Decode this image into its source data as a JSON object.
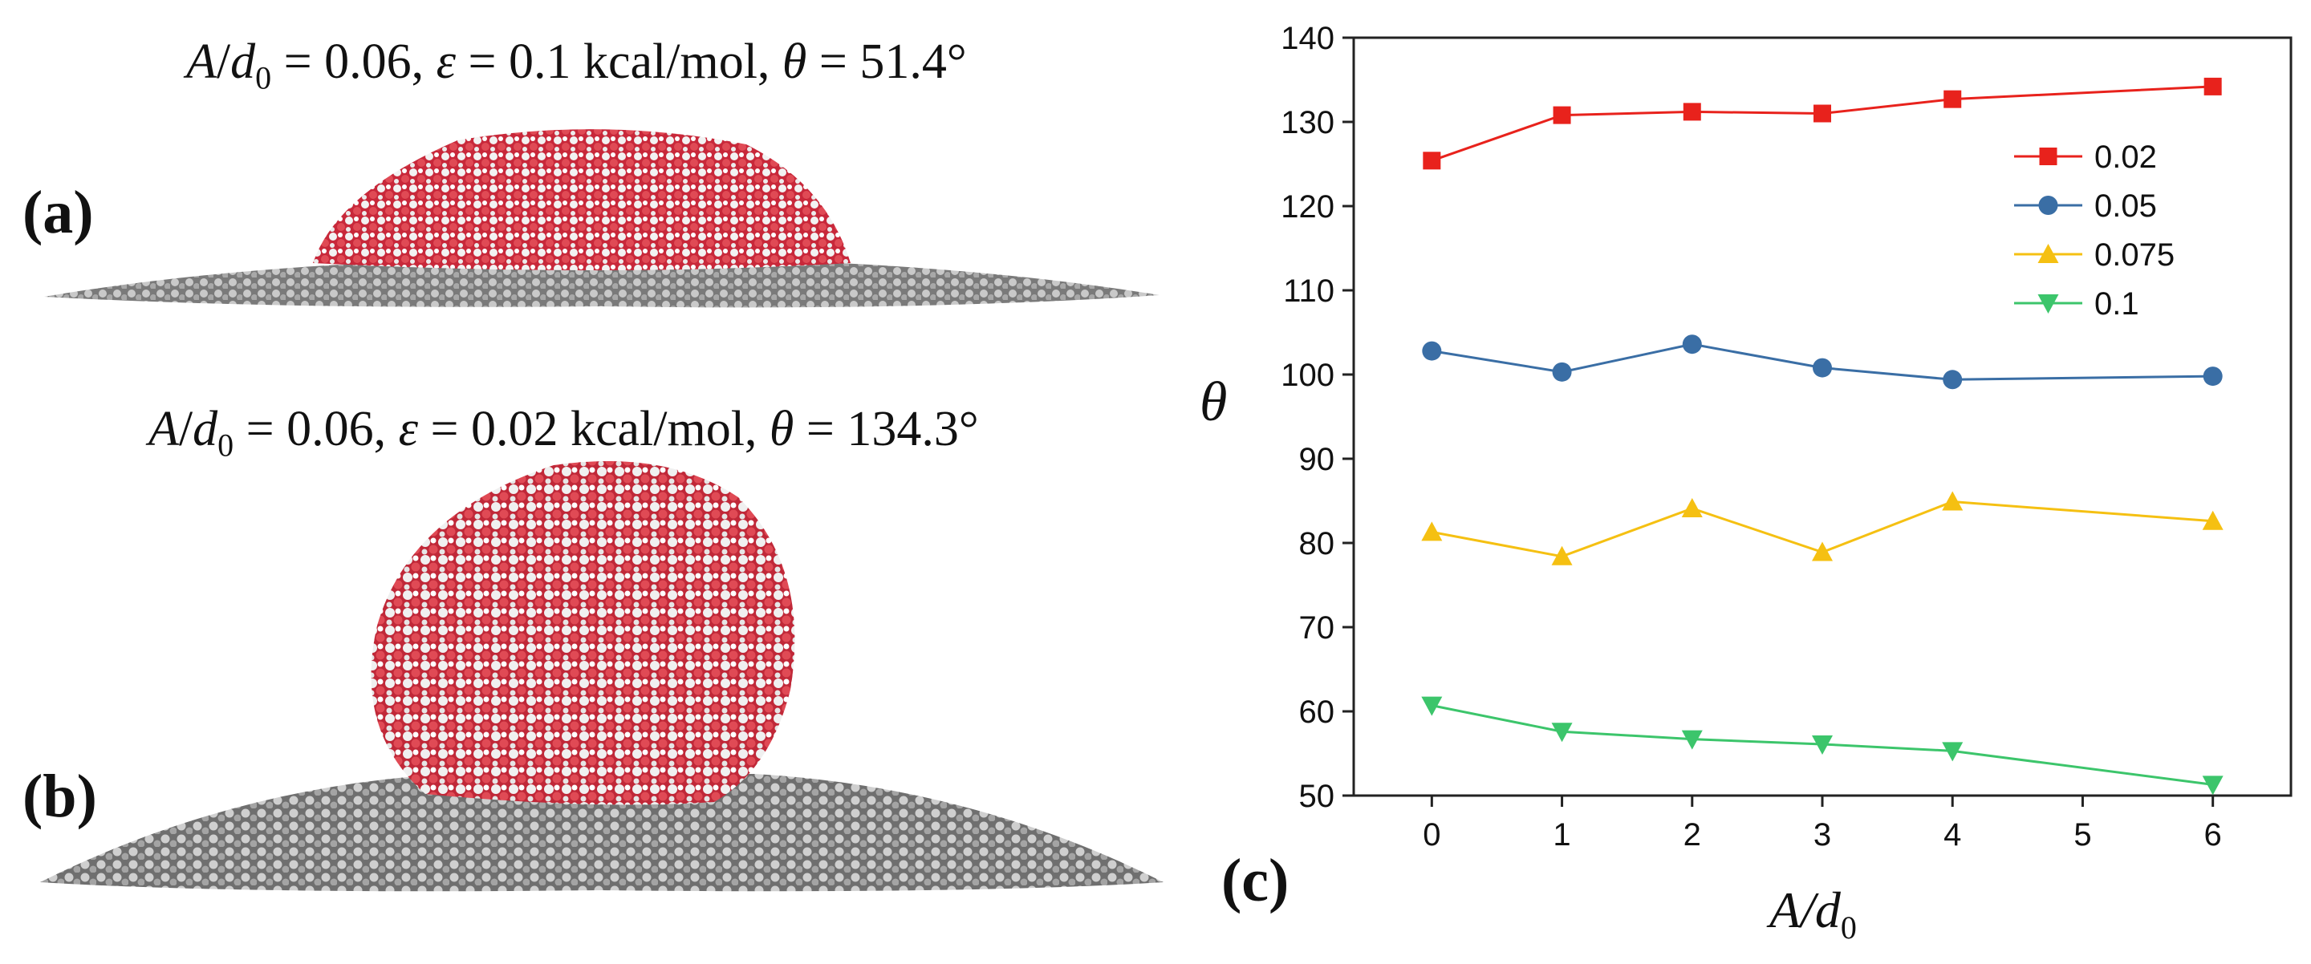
{
  "panels": {
    "a": {
      "label": "(a)",
      "caption": {
        "var1": "A",
        "var1_sub": "d",
        "sub_idx": "0",
        "ratio": " = 0.06, ",
        "eps_sym": "ε",
        "eps_val": " = 0.1 kcal/mol, ",
        "theta_sym": "θ",
        "theta_val": " = 51.4°"
      }
    },
    "b": {
      "label": "(b)",
      "caption": {
        "var1": "A",
        "var1_sub": "d",
        "sub_idx": "0",
        "ratio": " = 0.06, ",
        "eps_sym": "ε",
        "eps_val": " = 0.02 kcal/mol, ",
        "theta_sym": "θ",
        "theta_val": " = 134.3°"
      }
    },
    "c": {
      "label": "(c)"
    }
  },
  "colors": {
    "s002": "#e8221c",
    "s005": "#3a6ea5",
    "s0075": "#f5c012",
    "s01": "#3cc56b",
    "substrate": "#8a8a8a",
    "oxygen": "#d9323a",
    "hydrogen": "#f1f1f1"
  },
  "chart_data": {
    "type": "line",
    "title": "",
    "xlabel": "A/d0",
    "xlabel_main": "A/d",
    "xlabel_sub": "0",
    "ylabel": "θ",
    "xlim": [
      -0.6,
      6.6
    ],
    "ylim": [
      50,
      140
    ],
    "xticks": [
      0,
      1,
      2,
      3,
      4,
      5,
      6
    ],
    "yticks": [
      50,
      60,
      70,
      80,
      90,
      100,
      110,
      120,
      130,
      140
    ],
    "x": [
      0,
      1,
      2,
      3,
      4,
      6
    ],
    "legend_position": "upper-right",
    "series": [
      {
        "name": "0.02",
        "marker": "square",
        "color": "#e8221c",
        "values": [
          125.4,
          130.8,
          131.2,
          131.0,
          132.7,
          134.2
        ]
      },
      {
        "name": "0.05",
        "marker": "circle",
        "color": "#3a6ea5",
        "values": [
          102.8,
          100.3,
          103.6,
          100.8,
          99.4,
          99.8
        ]
      },
      {
        "name": "0.075",
        "marker": "triangle-up",
        "color": "#f5c012",
        "values": [
          81.3,
          78.4,
          84.1,
          78.9,
          84.9,
          82.6
        ]
      },
      {
        "name": "0.1",
        "marker": "triangle-down",
        "color": "#3cc56b",
        "values": [
          60.7,
          57.6,
          56.7,
          56.1,
          55.3,
          51.3
        ]
      }
    ]
  }
}
